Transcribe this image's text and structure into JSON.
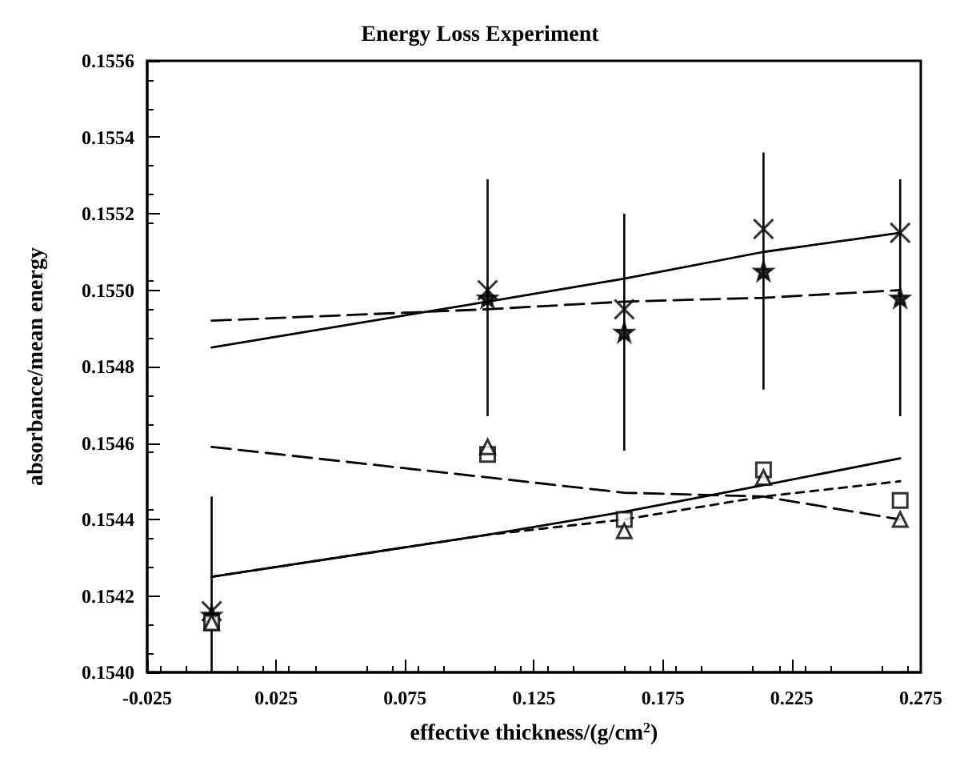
{
  "chart_data": {
    "type": "scatter",
    "title": "Energy Loss Experiment",
    "xlabel": "effective thickness/(g/cm$^{2}$)",
    "ylabel": "absorbance/mean energy",
    "x": [
      0.0,
      0.107,
      0.16,
      0.214,
      0.267
    ],
    "series": [
      {
        "type": "scatter",
        "marker": "cross",
        "color": "#000000",
        "values": [
          0.15416,
          0.155,
          0.15495,
          0.15516,
          0.15515
        ]
      },
      {
        "type": "scatter",
        "marker": "star",
        "color": "#000000",
        "values": [
          0.15415,
          0.15498,
          0.15489,
          0.15505,
          0.15498
        ],
        "errors": [
          [
            0.154,
            0.15446
          ],
          0.00031,
          0.00031,
          0.00031,
          0.00031
        ]
      },
      {
        "type": "scatter",
        "marker": "square",
        "color": "#000000",
        "values": [
          0.15413,
          0.15457,
          0.1544,
          0.15453,
          0.15445
        ]
      },
      {
        "type": "scatter",
        "marker": "triangle",
        "color": "#000000",
        "values": [
          0.15413,
          0.15459,
          0.15437,
          0.15451,
          0.1544
        ]
      },
      {
        "type": "line",
        "line_style": "solid",
        "color": "#000000",
        "values": [
          0.15485,
          0.15497,
          0.15503,
          0.1551,
          0.15515
        ]
      },
      {
        "type": "line",
        "line_style": "dashed",
        "color": "#000000",
        "values": [
          0.15492,
          0.15495,
          0.15497,
          0.15498,
          0.155
        ]
      },
      {
        "type": "line",
        "line_style": "dashed",
        "color": "#000000",
        "values": [
          0.15459,
          0.15451,
          0.15447,
          0.15446,
          0.1544
        ]
      },
      {
        "type": "line",
        "line_style": "solid",
        "color": "#000000",
        "values": [
          0.15425,
          0.15436,
          0.15442,
          0.15449,
          0.15456
        ]
      },
      {
        "type": "line",
        "line_style": "dotted",
        "color": "#000000",
        "values": [
          0.15425,
          0.15436,
          0.1544,
          0.15446,
          0.1545
        ]
      }
    ],
    "xlim": [
      -0.025,
      0.275
    ],
    "xticks": [
      -0.025,
      0.025,
      0.075,
      0.125,
      0.175,
      0.225,
      0.275
    ],
    "ylim": [
      0.154,
      0.1556
    ],
    "yticks": [
      {
        "value": 0.154,
        "label": "0.1540"
      },
      0.1542,
      0.1544,
      0.1546,
      0.1548,
      {
        "value": 0.155,
        "label": "0.1550"
      },
      0.1552,
      0.1554,
      0.1556
    ],
    "grid": false
  }
}
